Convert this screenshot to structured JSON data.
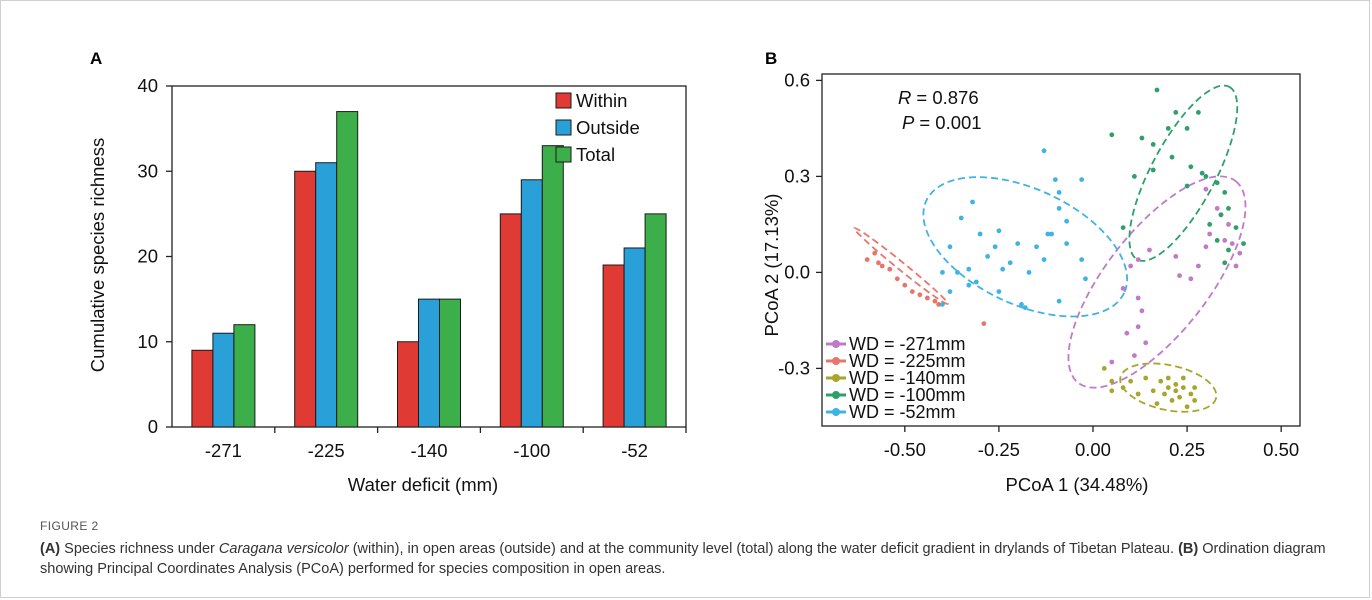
{
  "panelA": {
    "letter": "A",
    "chart_data": {
      "type": "bar",
      "categories": [
        "-271",
        "-225",
        "-140",
        "-100",
        "-52"
      ],
      "series": [
        {
          "name": "Within",
          "color": "#e03a34",
          "values": [
            9,
            30,
            10,
            25,
            19
          ]
        },
        {
          "name": "Outside",
          "color": "#2aa0d8",
          "values": [
            11,
            31,
            15,
            29,
            21
          ]
        },
        {
          "name": "Total",
          "color": "#3daf4a",
          "values": [
            12,
            37,
            15,
            33,
            25
          ]
        }
      ],
      "xlabel": "Water deficit (mm)",
      "ylabel": "Cumulative species richness",
      "ylim": [
        0,
        40
      ],
      "yticks": [
        0,
        10,
        20,
        30,
        40
      ],
      "legend_position": "top-right"
    }
  },
  "panelB": {
    "letter": "B",
    "chart_data": {
      "type": "scatter",
      "xlabel": "PCoA 1 (34.48%)",
      "ylabel": "PCoA 2 (17.13%)",
      "xlim": [
        -0.72,
        0.55
      ],
      "ylim": [
        -0.48,
        0.62
      ],
      "xticks": [
        "-0.50",
        "-0.25",
        "0.00",
        "0.25",
        "0.50"
      ],
      "yticks": [
        "-0.3",
        "0.0",
        "0.3",
        "0.6"
      ],
      "annotation_R": "= 0.876",
      "annotation_P": "= 0.001",
      "legend_position": "bottom-left",
      "series": [
        {
          "name": "WD = -271mm",
          "color": "#c07ac7",
          "ellipse": {
            "cx": 0.17,
            "cy": -0.03,
            "rx": 0.34,
            "ry": 0.16,
            "angle": 52
          },
          "points": [
            [
              0.3,
              0.26
            ],
            [
              0.33,
              0.2
            ],
            [
              0.36,
              0.15
            ],
            [
              0.37,
              0.09
            ],
            [
              0.39,
              0.06
            ],
            [
              0.38,
              0.02
            ],
            [
              0.3,
              0.08
            ],
            [
              0.28,
              0.02
            ],
            [
              0.26,
              -0.02
            ],
            [
              0.22,
              0.05
            ],
            [
              0.15,
              0.07
            ],
            [
              0.12,
              0.04
            ],
            [
              0.1,
              0.02
            ],
            [
              0.08,
              -0.05
            ],
            [
              0.12,
              -0.08
            ],
            [
              0.13,
              -0.12
            ],
            [
              0.12,
              -0.17
            ],
            [
              0.14,
              -0.22
            ],
            [
              0.11,
              -0.26
            ],
            [
              0.05,
              -0.28
            ],
            [
              0.34,
              0.18
            ],
            [
              0.35,
              0.1
            ],
            [
              0.31,
              0.12
            ],
            [
              0.23,
              -0.01
            ],
            [
              0.09,
              -0.19
            ]
          ]
        },
        {
          "name": "WD = -225mm",
          "color": "#e8756a",
          "ellipse": {
            "cx": -0.51,
            "cy": 0.02,
            "rx": 0.16,
            "ry": 0.012,
            "angle": -39
          },
          "points": [
            [
              -0.58,
              0.06
            ],
            [
              -0.6,
              0.04
            ],
            [
              -0.57,
              0.03
            ],
            [
              -0.56,
              0.02
            ],
            [
              -0.54,
              0.01
            ],
            [
              -0.52,
              -0.02
            ],
            [
              -0.5,
              -0.04
            ],
            [
              -0.48,
              -0.06
            ],
            [
              -0.46,
              -0.07
            ],
            [
              -0.44,
              -0.08
            ],
            [
              -0.42,
              -0.09
            ],
            [
              -0.41,
              -0.1
            ],
            [
              -0.29,
              -0.16
            ]
          ]
        },
        {
          "name": "WD = -140mm",
          "color": "#a9a52a",
          "ellipse": {
            "cx": 0.2,
            "cy": -0.36,
            "rx": 0.13,
            "ry": 0.07,
            "angle": -12
          },
          "points": [
            [
              0.14,
              -0.33
            ],
            [
              0.18,
              -0.34
            ],
            [
              0.2,
              -0.33
            ],
            [
              0.22,
              -0.35
            ],
            [
              0.24,
              -0.36
            ],
            [
              0.26,
              -0.38
            ],
            [
              0.23,
              -0.39
            ],
            [
              0.21,
              -0.4
            ],
            [
              0.19,
              -0.38
            ],
            [
              0.16,
              -0.37
            ],
            [
              0.12,
              -0.38
            ],
            [
              0.27,
              -0.4
            ],
            [
              0.25,
              -0.42
            ],
            [
              0.08,
              -0.36
            ],
            [
              0.05,
              -0.37
            ],
            [
              0.1,
              -0.34
            ],
            [
              0.22,
              -0.37
            ],
            [
              0.17,
              -0.41
            ],
            [
              0.2,
              -0.36
            ],
            [
              0.24,
              -0.33
            ],
            [
              0.27,
              -0.36
            ],
            [
              0.03,
              -0.3
            ],
            [
              0.05,
              -0.34
            ]
          ]
        },
        {
          "name": "WD = -100mm",
          "color": "#2da06b",
          "ellipse": {
            "cx": 0.24,
            "cy": 0.31,
            "rx": 0.26,
            "ry": 0.1,
            "angle": 62
          },
          "points": [
            [
              0.17,
              0.57
            ],
            [
              0.22,
              0.5
            ],
            [
              0.28,
              0.5
            ],
            [
              0.25,
              0.45
            ],
            [
              0.2,
              0.45
            ],
            [
              0.13,
              0.42
            ],
            [
              0.16,
              0.4
            ],
            [
              0.21,
              0.36
            ],
            [
              0.26,
              0.33
            ],
            [
              0.3,
              0.3
            ],
            [
              0.33,
              0.28
            ],
            [
              0.35,
              0.25
            ],
            [
              0.36,
              0.2
            ],
            [
              0.34,
              0.18
            ],
            [
              0.38,
              0.14
            ],
            [
              0.4,
              0.09
            ],
            [
              0.33,
              0.1
            ],
            [
              0.31,
              0.15
            ],
            [
              0.36,
              0.07
            ],
            [
              0.35,
              0.03
            ],
            [
              0.29,
              0.31
            ],
            [
              0.25,
              0.27
            ],
            [
              0.16,
              0.32
            ],
            [
              0.11,
              0.3
            ],
            [
              0.05,
              0.43
            ],
            [
              0.08,
              0.14
            ]
          ]
        },
        {
          "name": "WD = -52mm",
          "color": "#3fb3e3",
          "ellipse": {
            "cx": -0.18,
            "cy": 0.08,
            "rx": 0.29,
            "ry": 0.18,
            "angle": -25
          },
          "points": [
            [
              -0.13,
              0.38
            ],
            [
              -0.1,
              0.29
            ],
            [
              -0.09,
              0.25
            ],
            [
              -0.03,
              0.29
            ],
            [
              -0.09,
              0.2
            ],
            [
              -0.07,
              0.16
            ],
            [
              -0.12,
              0.12
            ],
            [
              -0.2,
              0.09
            ],
            [
              -0.25,
              0.13
            ],
            [
              -0.35,
              0.17
            ],
            [
              -0.38,
              0.08
            ],
            [
              -0.28,
              0.05
            ],
            [
              -0.26,
              0.08
            ],
            [
              -0.3,
              0.12
            ],
            [
              -0.33,
              0.01
            ],
            [
              -0.31,
              -0.03
            ],
            [
              -0.24,
              0.01
            ],
            [
              -0.22,
              0.03
            ],
            [
              -0.17,
              0.0
            ],
            [
              -0.19,
              -0.1
            ],
            [
              -0.25,
              -0.06
            ],
            [
              -0.33,
              -0.04
            ],
            [
              -0.36,
              0.0
            ],
            [
              -0.4,
              0.0
            ],
            [
              -0.13,
              0.04
            ],
            [
              -0.07,
              0.09
            ],
            [
              -0.09,
              -0.09
            ],
            [
              -0.15,
              0.08
            ],
            [
              -0.03,
              0.04
            ],
            [
              -0.02,
              -0.02
            ],
            [
              -0.11,
              0.12
            ],
            [
              -0.38,
              -0.06
            ],
            [
              -0.4,
              -0.1
            ],
            [
              -0.18,
              -0.11
            ],
            [
              -0.32,
              0.22
            ]
          ]
        }
      ]
    }
  },
  "caption": {
    "label": "FIGURE 2",
    "a_prefix": "(A)",
    "a_text1": " Species richness under ",
    "a_italic": "Caragana versicolor",
    "a_text2": " (within), in open areas (outside) and at the community level (total) along the water deficit gradient in drylands of Tibetan Plateau. ",
    "b_prefix": "(B)",
    "b_text": " Ordination diagram showing Principal Coordinates Analysis (PCoA) performed for species composition in open areas."
  }
}
